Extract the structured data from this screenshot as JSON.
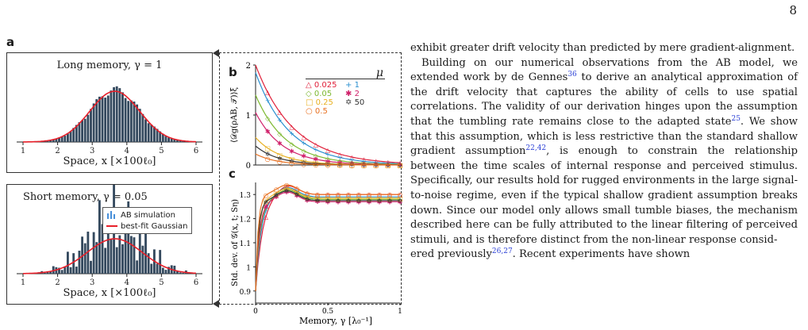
{
  "page": {
    "number": "8"
  },
  "figure": {
    "panel_a_label": "a",
    "panel_b_label": "b",
    "panel_c_label": "c",
    "panel_a_top": {
      "title": "Long memory, γ = 1",
      "xlabel": "Space, x [×100ℓ₀]",
      "x_ticks": [
        "1",
        "2",
        "3",
        "4",
        "5",
        "6"
      ]
    },
    "panel_a_bottom": {
      "title": "Short memory, γ = 0.05",
      "xlabel": "Space, x [×100ℓ₀]",
      "x_ticks": [
        "1",
        "2",
        "3",
        "4",
        "5",
        "6"
      ],
      "legend": {
        "sim_label": "AB simulation",
        "fit_label": "best-fit Gaussian"
      }
    },
    "panel_b": {
      "ylabel": "⟨𝒟g(ρAB, 𝒯)⟩ξ",
      "y_ticks": [
        "0",
        "1",
        "2"
      ],
      "mu_symbol": "μ",
      "legend_items": [
        {
          "marker": "△",
          "label": "0.025",
          "color": "#e0203a"
        },
        {
          "marker": "+",
          "label": "1",
          "color": "#2a8fd0"
        },
        {
          "marker": "◇",
          "label": "0.05",
          "color": "#7cb82f"
        },
        {
          "marker": "✱",
          "label": "2",
          "color": "#d0206a"
        },
        {
          "marker": "□",
          "label": "0.25",
          "color": "#e8b020"
        },
        {
          "marker": "✡",
          "label": "50",
          "color": "#333333"
        },
        {
          "marker": "○",
          "label": "0.5",
          "color": "#e87020"
        }
      ]
    },
    "panel_c": {
      "ylabel": "Std. dev. of 𝒢(x, t; Sη)",
      "y_ticks": [
        "0.9",
        "1",
        "1.1",
        "1.2",
        "1.3"
      ],
      "x_ticks": [
        "0",
        "0.5",
        "1"
      ],
      "xlabel": "Memory, γ [λ₀⁻¹]"
    }
  },
  "colors": {
    "bar_fill": "#34495e",
    "gaussian": "#e8202a",
    "link_blue": "#2a3fd6"
  },
  "text": {
    "p1": "exhibit greater drift velocity than predicted by mere gradient-alignment.",
    "p2_a": "Building on our numerical observations from the AB model, we extended work by de Gennes",
    "ref_36": "36",
    "p2_b": " to derive an analytical approximation of the drift velocity that captures the ability of cells to use spatial correlations. The validity of our derivation hinges upon the assumption that the tumbling rate remains close to the adapted state",
    "ref_25": "25",
    "p2_c": ". We show that this assumption, which is less restrictive than the standard shallow gradient assumption",
    "ref_22_42": "22,42",
    "p2_d": ", is enough to constrain the relationship between the time scales of internal response and perceived stimulus. Specifically, our results hold for rugged environments in the large signal-to-noise regime, even if the typical shallow gradient assumption breaks down. Since our model only allows small tumble biases, the mechanism described here can be fully attributed to the linear filtering of perceived stimuli, and is therefore distinct from the non-linear response consid-",
    "p2_e": "ered previously",
    "ref_26_27": "26,27",
    "p2_f": ". Recent experiments have shown"
  }
}
